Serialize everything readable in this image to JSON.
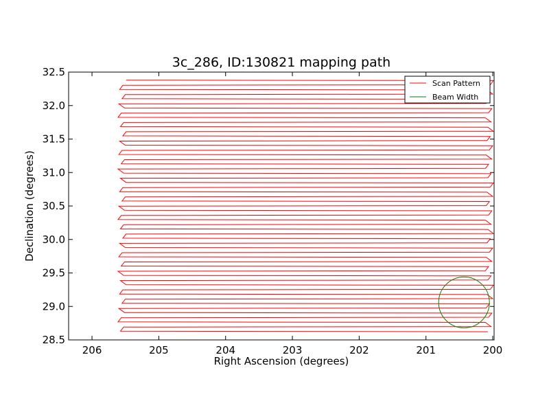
{
  "chart_data": {
    "type": "line",
    "title": "3c_286, ID:130821 mapping path",
    "xlabel": "Right Ascension (degrees)",
    "ylabel": "Declination (degrees)",
    "xlim": [
      206.35,
      199.98
    ],
    "ylim": [
      28.5,
      32.5
    ],
    "x_inverted": true,
    "xticks": [
      206,
      205,
      204,
      203,
      202,
      201,
      200
    ],
    "yticks": [
      28.5,
      29.0,
      29.5,
      30.0,
      30.5,
      31.0,
      31.5,
      32.0,
      32.5
    ],
    "xtick_labels": [
      "206",
      "205",
      "204",
      "203",
      "202",
      "201",
      "200"
    ],
    "ytick_labels": [
      "28.5",
      "29.0",
      "29.5",
      "30.0",
      "30.5",
      "31.0",
      "31.5",
      "32.0",
      "32.5"
    ],
    "grid": false,
    "legend_position": "top-right",
    "series": [
      {
        "name": "Scan Pattern",
        "color": "#ff0000",
        "kind": "raster-scan",
        "x_left": 205.55,
        "x_right": 200.05,
        "y_top": 32.38,
        "y_bottom": 28.63,
        "num_scans": 55,
        "slant": 0.11
      },
      {
        "name": "Beam Width",
        "color": "#008000",
        "kind": "circle",
        "center_x": 200.43,
        "center_y": 29.06,
        "radius": 0.38
      }
    ]
  }
}
